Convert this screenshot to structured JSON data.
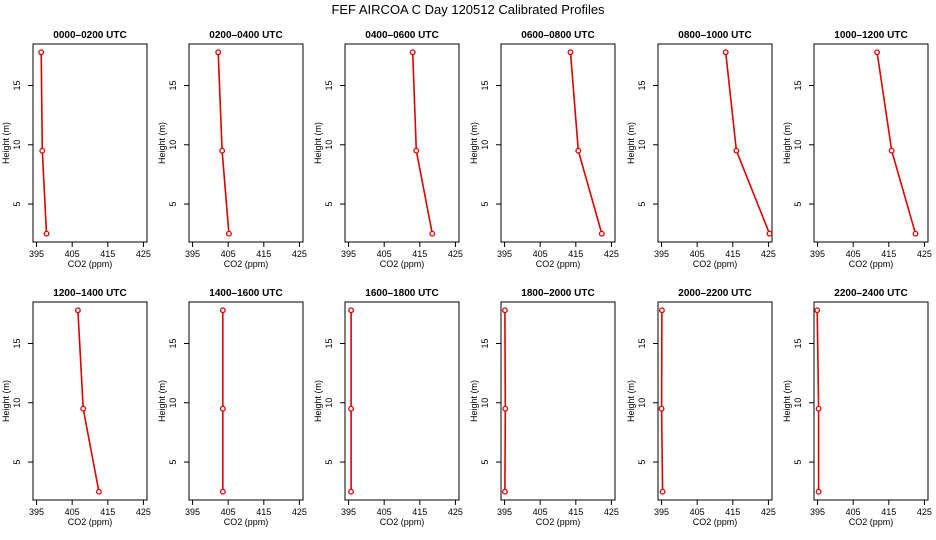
{
  "figure": {
    "title": "FEF AIRCOA C  Day 120512  Calibrated Profiles"
  },
  "colors": {
    "series": "#e00000",
    "axis": "#000000"
  },
  "chart_data": [
    {
      "type": "line",
      "title": "0000–0200 UTC",
      "xlabel": "CO2 (ppm)",
      "ylabel": "Height (m)",
      "xlim": [
        394,
        426
      ],
      "ylim": [
        1.8,
        18.5
      ],
      "xticks": [
        395,
        405,
        415,
        425
      ],
      "yticks": [
        5,
        10,
        15
      ],
      "grid": false,
      "x": [
        396.3,
        396.6,
        397.8
      ],
      "y": [
        17.8,
        9.5,
        2.5
      ]
    },
    {
      "type": "line",
      "title": "0200–0400 UTC",
      "xlabel": "CO2 (ppm)",
      "ylabel": "Height (m)",
      "xlim": [
        394,
        426
      ],
      "ylim": [
        1.8,
        18.5
      ],
      "xticks": [
        395,
        405,
        415,
        425
      ],
      "yticks": [
        5,
        10,
        15
      ],
      "grid": false,
      "x": [
        402.2,
        403.3,
        405.2
      ],
      "y": [
        17.8,
        9.5,
        2.5
      ]
    },
    {
      "type": "line",
      "title": "0400–0600 UTC",
      "xlabel": "CO2 (ppm)",
      "ylabel": "Height (m)",
      "xlim": [
        394,
        426
      ],
      "ylim": [
        1.8,
        18.5
      ],
      "xticks": [
        395,
        405,
        415,
        425
      ],
      "yticks": [
        5,
        10,
        15
      ],
      "grid": false,
      "x": [
        413.0,
        414.0,
        418.5
      ],
      "y": [
        17.8,
        9.5,
        2.5
      ]
    },
    {
      "type": "line",
      "title": "0600–0800 UTC",
      "xlabel": "CO2 (ppm)",
      "ylabel": "Height (m)",
      "xlim": [
        394,
        426
      ],
      "ylim": [
        1.8,
        18.5
      ],
      "xticks": [
        395,
        405,
        415,
        425
      ],
      "yticks": [
        5,
        10,
        15
      ],
      "grid": false,
      "x": [
        413.5,
        415.7,
        422.3
      ],
      "y": [
        17.8,
        9.5,
        2.5
      ]
    },
    {
      "type": "line",
      "title": "0800–1000 UTC",
      "xlabel": "CO2 (ppm)",
      "ylabel": "Height (m)",
      "xlim": [
        394,
        426
      ],
      "ylim": [
        1.8,
        18.5
      ],
      "xticks": [
        395,
        405,
        415,
        425
      ],
      "yticks": [
        5,
        10,
        15
      ],
      "grid": false,
      "x": [
        413.0,
        416.0,
        425.3
      ],
      "y": [
        17.8,
        9.5,
        2.5
      ]
    },
    {
      "type": "line",
      "title": "1000–1200 UTC",
      "xlabel": "CO2 (ppm)",
      "ylabel": "Height (m)",
      "xlim": [
        394,
        426
      ],
      "ylim": [
        1.8,
        18.5
      ],
      "xticks": [
        395,
        405,
        415,
        425
      ],
      "yticks": [
        5,
        10,
        15
      ],
      "grid": false,
      "x": [
        411.7,
        415.8,
        422.5
      ],
      "y": [
        17.8,
        9.5,
        2.5
      ]
    },
    {
      "type": "line",
      "title": "1200–1400 UTC",
      "xlabel": "CO2 (ppm)",
      "ylabel": "Height (m)",
      "xlim": [
        394,
        426
      ],
      "ylim": [
        1.8,
        18.5
      ],
      "xticks": [
        395,
        405,
        415,
        425
      ],
      "yticks": [
        5,
        10,
        15
      ],
      "grid": false,
      "x": [
        406.6,
        408.1,
        412.5
      ],
      "y": [
        17.8,
        9.5,
        2.5
      ]
    },
    {
      "type": "line",
      "title": "1400–1600 UTC",
      "xlabel": "CO2 (ppm)",
      "ylabel": "Height (m)",
      "xlim": [
        394,
        426
      ],
      "ylim": [
        1.8,
        18.5
      ],
      "xticks": [
        395,
        405,
        415,
        425
      ],
      "yticks": [
        5,
        10,
        15
      ],
      "grid": false,
      "x": [
        403.5,
        403.5,
        403.5
      ],
      "y": [
        17.8,
        9.5,
        2.5
      ]
    },
    {
      "type": "line",
      "title": "1600–1800 UTC",
      "xlabel": "CO2 (ppm)",
      "ylabel": "Height (m)",
      "xlim": [
        394,
        426
      ],
      "ylim": [
        1.8,
        18.5
      ],
      "xticks": [
        395,
        405,
        415,
        425
      ],
      "yticks": [
        5,
        10,
        15
      ],
      "grid": false,
      "x": [
        395.7,
        395.7,
        395.7
      ],
      "y": [
        17.8,
        9.5,
        2.5
      ]
    },
    {
      "type": "line",
      "title": "1800–2000 UTC",
      "xlabel": "CO2 (ppm)",
      "ylabel": "Height (m)",
      "xlim": [
        394,
        426
      ],
      "ylim": [
        1.8,
        18.5
      ],
      "xticks": [
        395,
        405,
        415,
        425
      ],
      "yticks": [
        5,
        10,
        15
      ],
      "grid": false,
      "x": [
        395.1,
        395.2,
        395.1
      ],
      "y": [
        17.8,
        9.5,
        2.5
      ]
    },
    {
      "type": "line",
      "title": "2000–2200 UTC",
      "xlabel": "CO2 (ppm)",
      "ylabel": "Height (m)",
      "xlim": [
        394,
        426
      ],
      "ylim": [
        1.8,
        18.5
      ],
      "xticks": [
        395,
        405,
        415,
        425
      ],
      "yticks": [
        5,
        10,
        15
      ],
      "grid": false,
      "x": [
        395.1,
        395.0,
        395.3
      ],
      "y": [
        17.8,
        9.5,
        2.5
      ]
    },
    {
      "type": "line",
      "title": "2200–2400 UTC",
      "xlabel": "CO2 (ppm)",
      "ylabel": "Height (m)",
      "xlim": [
        394,
        426
      ],
      "ylim": [
        1.8,
        18.5
      ],
      "xticks": [
        395,
        405,
        415,
        425
      ],
      "yticks": [
        5,
        10,
        15
      ],
      "grid": false,
      "x": [
        394.9,
        395.3,
        395.3
      ],
      "y": [
        17.8,
        9.5,
        2.5
      ]
    }
  ]
}
